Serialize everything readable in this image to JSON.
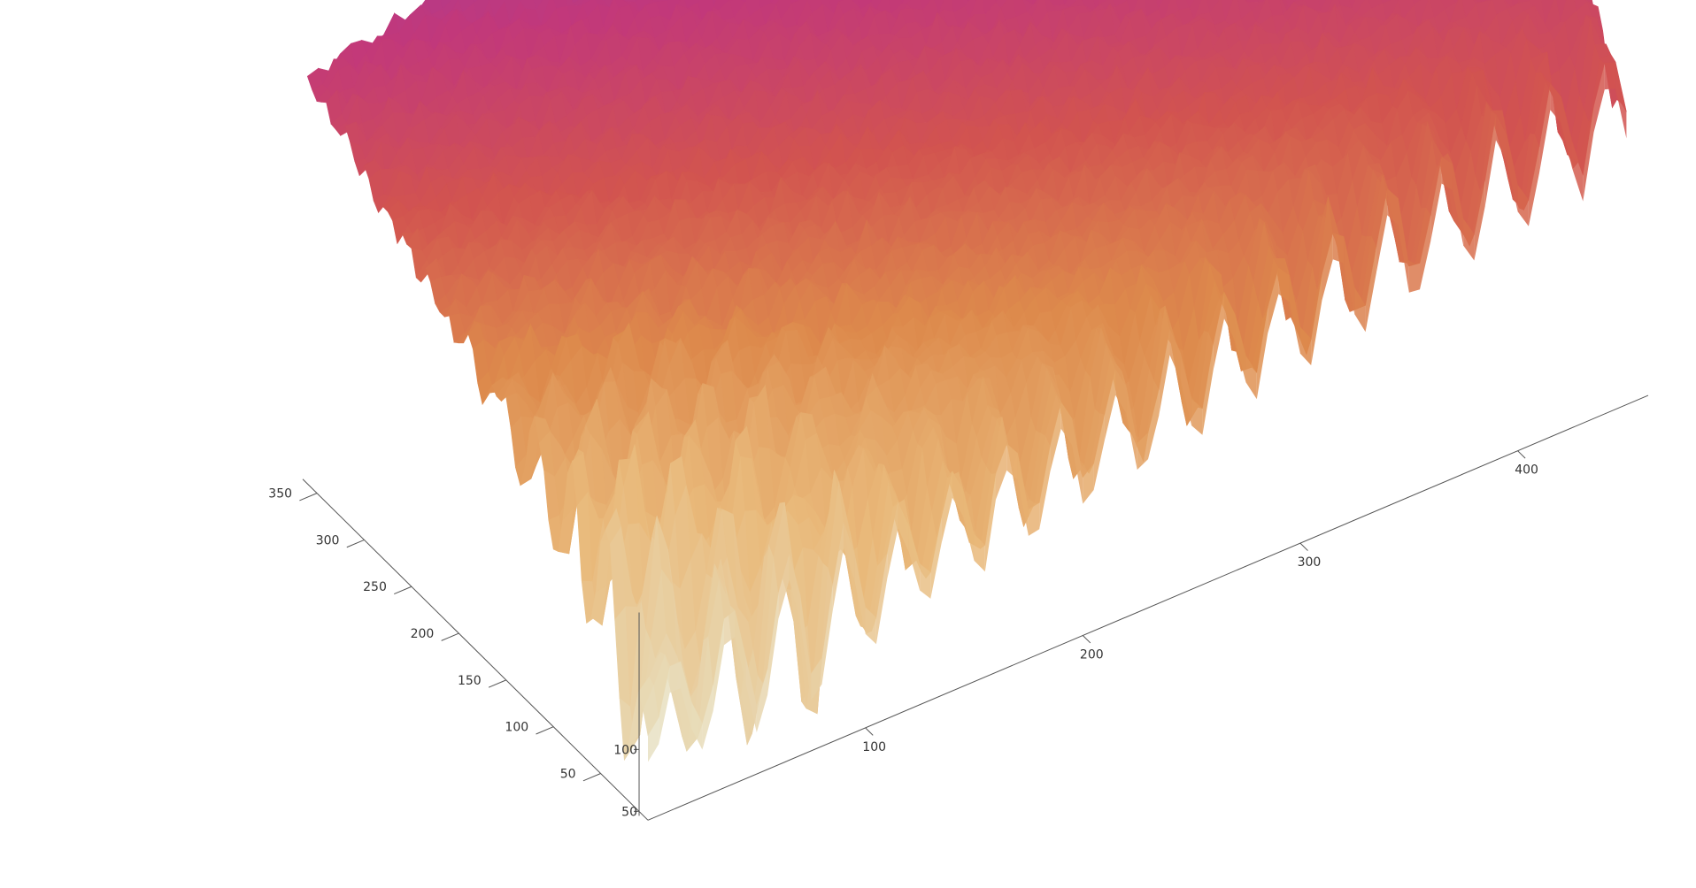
{
  "chart_data": {
    "type": "surface3d",
    "title": "",
    "xlabel": "",
    "ylabel": "",
    "zlabel": "",
    "x_axis": {
      "ticks": [
        100,
        200,
        300,
        400
      ],
      "range": [
        0,
        450
      ]
    },
    "y_axis": {
      "ticks": [
        50,
        100,
        150,
        200,
        250,
        300,
        350
      ],
      "range": [
        0,
        360
      ]
    },
    "z_axis": {
      "ticks": [
        50,
        100
      ],
      "range": [
        40,
        420
      ]
    },
    "grid": false,
    "legend": "none",
    "colormap": [
      "#e8e2c4",
      "#e9b97a",
      "#dd8a4c",
      "#d2544f",
      "#c2387a",
      "#9b3ea6",
      "#7b3f9a",
      "#4f6a6a"
    ]
  }
}
